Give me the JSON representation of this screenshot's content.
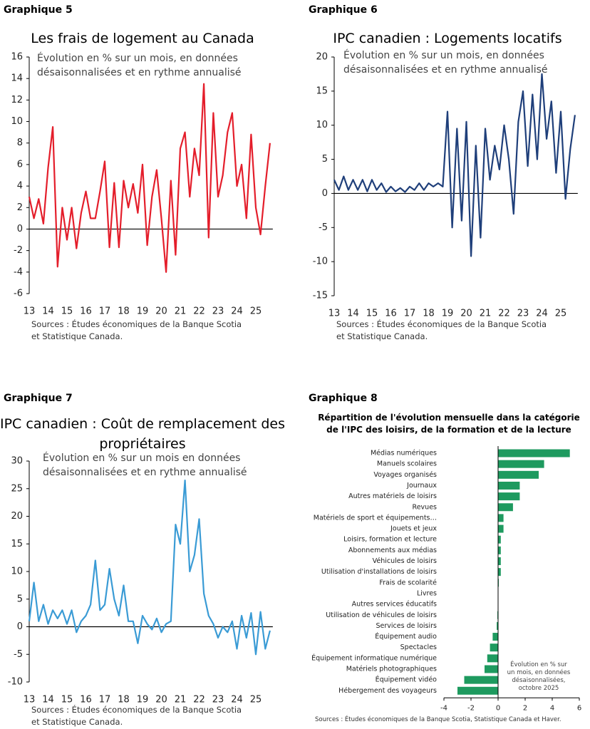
{
  "chart_data": [
    {
      "type": "line",
      "heading": "Graphique 5",
      "title": "Les frais de logement au Canada",
      "subtitle": "Évolution en % sur un mois, en données désaisonnalisées et en rythme annualisé",
      "source": "Sources : Études économiques de la Banque Scotia et Statistique Canada.",
      "color": "#e41e2b",
      "x": [
        13,
        13.25,
        13.5,
        13.75,
        14,
        14.25,
        14.5,
        14.75,
        15,
        15.25,
        15.5,
        15.75,
        16,
        16.25,
        16.5,
        16.75,
        17,
        17.25,
        17.5,
        17.75,
        18,
        18.25,
        18.5,
        18.75,
        19,
        19.25,
        19.5,
        19.75,
        20,
        20.25,
        20.5,
        20.75,
        21,
        21.25,
        21.5,
        21.75,
        22,
        22.25,
        22.5,
        22.75,
        23,
        23.25,
        23.5,
        23.75,
        24,
        24.25,
        24.5,
        24.75,
        25,
        25.25,
        25.5,
        25.75
      ],
      "values": [
        3,
        1,
        2.8,
        0.5,
        5.7,
        9.5,
        -3.5,
        2,
        -1,
        2,
        -1.8,
        1.5,
        3.5,
        1,
        1,
        3.5,
        6.3,
        -1.7,
        4.3,
        -1.7,
        4.5,
        2,
        4.2,
        1.5,
        6,
        -1.5,
        3,
        5.5,
        1,
        -4,
        4.5,
        -2.4,
        7.5,
        9,
        3,
        7.5,
        5,
        13.5,
        -0.8,
        10.8,
        3,
        5,
        9,
        10.8,
        4,
        6,
        1,
        8.8,
        2,
        -0.5,
        4,
        8
      ],
      "xlim": [
        13,
        25.9
      ],
      "xticks": [
        13,
        14,
        15,
        16,
        17,
        18,
        19,
        20,
        21,
        22,
        23,
        24,
        25
      ],
      "ylim": [
        -6,
        16
      ],
      "yticks": [
        -6,
        -4,
        -2,
        0,
        2,
        4,
        6,
        8,
        10,
        12,
        14,
        16
      ]
    },
    {
      "type": "line",
      "heading": "Graphique 6",
      "title": "IPC canadien : Logements locatifs",
      "subtitle": "Évolution en % sur un mois, en données désaisonnalisées et en rythme annualisé",
      "source": "Sources : Études économiques de la Banque Scotia et Statistique Canada.",
      "color": "#1f3f7a",
      "x": [
        13,
        13.25,
        13.5,
        13.75,
        14,
        14.25,
        14.5,
        14.75,
        15,
        15.25,
        15.5,
        15.75,
        16,
        16.25,
        16.5,
        16.75,
        17,
        17.25,
        17.5,
        17.75,
        18,
        18.25,
        18.5,
        18.75,
        19,
        19.25,
        19.5,
        19.75,
        20,
        20.25,
        20.5,
        20.75,
        21,
        21.25,
        21.5,
        21.75,
        22,
        22.25,
        22.5,
        22.75,
        23,
        23.25,
        23.5,
        23.75,
        24,
        24.25,
        24.5,
        24.75,
        25,
        25.25,
        25.5,
        25.75
      ],
      "values": [
        2,
        0.5,
        2.5,
        0.5,
        2,
        0.5,
        2,
        0.3,
        2,
        0.5,
        1.5,
        0.2,
        1,
        0.3,
        0.8,
        0.2,
        1,
        0.5,
        1.5,
        0.5,
        1.5,
        1,
        1.5,
        1,
        12,
        -5,
        9.5,
        -4,
        10.5,
        -9.2,
        7,
        -6.5,
        9.5,
        2,
        7,
        3.5,
        10,
        5,
        -3,
        10.5,
        15,
        4,
        14.5,
        5,
        17.5,
        8,
        13.5,
        3,
        12,
        -0.8,
        6.5,
        11.5
      ],
      "xlim": [
        13,
        25.9
      ],
      "xticks": [
        13,
        14,
        15,
        16,
        17,
        18,
        19,
        20,
        21,
        22,
        23,
        24,
        25
      ],
      "ylim": [
        -15,
        20
      ],
      "yticks": [
        -15,
        -10,
        -5,
        0,
        5,
        10,
        15,
        20
      ]
    },
    {
      "type": "line",
      "heading": "Graphique 7",
      "title": "IPC canadien : Coût de remplacement des propriétaires",
      "subtitle": "Évolution en % sur un mois en données désaisonnalisées et en rythme annualisé",
      "source": "Sources : Études économiques de la Banque Scotia et Statistique Canada.",
      "color": "#3a9bd5",
      "x": [
        13,
        13.25,
        13.5,
        13.75,
        14,
        14.25,
        14.5,
        14.75,
        15,
        15.25,
        15.5,
        15.75,
        16,
        16.25,
        16.5,
        16.75,
        17,
        17.25,
        17.5,
        17.75,
        18,
        18.25,
        18.5,
        18.75,
        19,
        19.25,
        19.5,
        19.75,
        20,
        20.25,
        20.5,
        20.75,
        21,
        21.25,
        21.5,
        21.75,
        22,
        22.25,
        22.5,
        22.75,
        23,
        23.25,
        23.5,
        23.75,
        24,
        24.25,
        24.5,
        24.75,
        25,
        25.25,
        25.5,
        25.75
      ],
      "values": [
        1,
        8,
        1,
        4,
        0.5,
        3,
        1.5,
        3,
        0.5,
        3,
        -1,
        1,
        2,
        4,
        12,
        3,
        4,
        10.5,
        5,
        2,
        7.5,
        1,
        1,
        -3,
        2,
        0.5,
        -0.5,
        1.5,
        -1,
        0.5,
        1,
        18.5,
        15,
        26.5,
        10,
        13,
        19.5,
        6,
        2,
        0.5,
        -2,
        0,
        -1,
        1,
        -4,
        2,
        -2,
        2.5,
        -5,
        2.7,
        -4,
        -0.7
      ],
      "xlim": [
        13,
        25.9
      ],
      "xticks": [
        13,
        14,
        15,
        16,
        17,
        18,
        19,
        20,
        21,
        22,
        23,
        24,
        25
      ],
      "ylim": [
        -10,
        30
      ],
      "yticks": [
        -10,
        -5,
        0,
        5,
        10,
        15,
        20,
        25,
        30
      ]
    },
    {
      "type": "hbar",
      "heading": "Graphique 8",
      "title": "Répartition de l'évolution mensuelle dans la catégorie de l'IPC des loisirs, de la formation et de la lecture",
      "annotation": "Évolution en % sur un mois, en données désaisonnalisées, octobre 2025",
      "source": "Sources : Études économiques de la Banque Scotia, Statistique Canada et Haver.",
      "color": "#1e9a5f",
      "categories": [
        "Médias numériques",
        "Manuels scolaires",
        "Voyages organisés",
        "Journaux",
        "Autres matériels de loisirs",
        "Revues",
        "Matériels de sport et équipements…",
        "Jouets et jeux",
        "Loisirs, formation et lecture",
        "Abonnements aux médias",
        "Véhicules de loisirs",
        "Utilisation d'installations de loisirs",
        "Frais de scolarité",
        "Livres",
        "Autres services éducatifs",
        "Utilisation de véhicules de loisirs",
        "Services de loisirs",
        "Équipement audio",
        "Spectacles",
        "Équipement informatique numérique",
        "Matériels photographiques",
        "Équipement vidéo",
        "Hébergement des voyageurs"
      ],
      "values": [
        5.3,
        3.4,
        3.0,
        1.6,
        1.6,
        1.1,
        0.4,
        0.4,
        0.2,
        0.2,
        0.2,
        0.2,
        0.05,
        0,
        0,
        -0.05,
        -0.1,
        -0.4,
        -0.6,
        -0.8,
        -1.0,
        -2.5,
        -3.0
      ],
      "xlim": [
        -4,
        6
      ],
      "xticks": [
        -4,
        -2,
        0,
        2,
        4,
        6
      ]
    }
  ]
}
